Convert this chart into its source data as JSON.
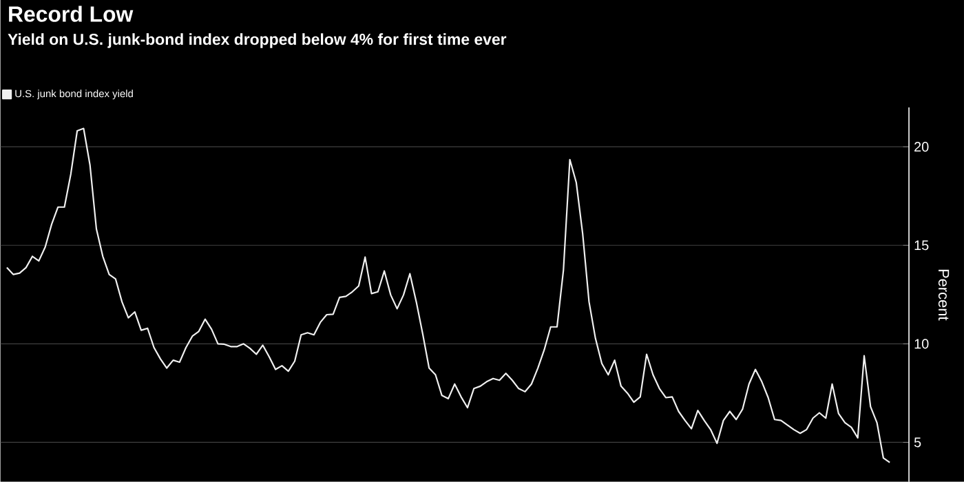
{
  "chart_data": {
    "type": "line",
    "title": "Record Low",
    "subtitle": "Yield on U.S. junk-bond index dropped below 4% for first time ever",
    "ylabel": "Percent",
    "categories": [
      null,
      null,
      null,
      null,
      null,
      null,
      null,
      null,
      null,
      null,
      null,
      null,
      null,
      null,
      null,
      null,
      null,
      null,
      null,
      null,
      null,
      null,
      null,
      null,
      null,
      null,
      null,
      null,
      null,
      null,
      null,
      null,
      null,
      null,
      null,
      null,
      null,
      null,
      null,
      null,
      null,
      null,
      null,
      null,
      null,
      null,
      null,
      null,
      null,
      null,
      null,
      null,
      null,
      null,
      null,
      null,
      null,
      null,
      null,
      null,
      null,
      null,
      null,
      null,
      null,
      null,
      null,
      null,
      null,
      null,
      null,
      null,
      null,
      null,
      null,
      null,
      null,
      null,
      null,
      null,
      null,
      null,
      null,
      null,
      null,
      null,
      null,
      null,
      null,
      null,
      null,
      null,
      null,
      null,
      null,
      null,
      null,
      null,
      null,
      null,
      null,
      null,
      null,
      null,
      null,
      null,
      null,
      null,
      null,
      null,
      null,
      null,
      null,
      null,
      null,
      null,
      null,
      null,
      null,
      null,
      null,
      null,
      null,
      null,
      null,
      null,
      null,
      null,
      null,
      null,
      null,
      null,
      null,
      null,
      null,
      null,
      null,
      null,
      null
    ],
    "series": [
      {
        "name": "U.S. junk bond index yield",
        "color": "#f0f0f0",
        "values": [
          13.87,
          13.52,
          13.59,
          13.87,
          14.44,
          14.21,
          14.91,
          16.06,
          16.94,
          16.94,
          18.61,
          20.81,
          20.93,
          19.07,
          15.83,
          14.44,
          13.52,
          13.29,
          12.13,
          11.32,
          11.62,
          10.69,
          10.79,
          9.81,
          9.24,
          8.77,
          9.17,
          9.07,
          9.81,
          10.39,
          10.63,
          11.25,
          10.74,
          10.0,
          9.98,
          9.86,
          9.86,
          10.0,
          9.77,
          9.47,
          9.93,
          9.35,
          8.7,
          8.89,
          8.61,
          9.12,
          10.46,
          10.56,
          10.46,
          11.09,
          11.48,
          11.5,
          12.36,
          12.41,
          12.64,
          12.94,
          14.4,
          12.55,
          12.64,
          13.7,
          12.48,
          11.78,
          12.48,
          13.56,
          12.13,
          10.51,
          8.77,
          8.43,
          7.38,
          7.22,
          7.96,
          7.31,
          6.76,
          7.73,
          7.85,
          8.08,
          8.24,
          8.15,
          8.5,
          8.15,
          7.73,
          7.57,
          7.96,
          8.77,
          9.7,
          10.86,
          10.86,
          13.75,
          19.35,
          18.19,
          15.6,
          12.13,
          10.28,
          9.0,
          8.43,
          9.17,
          7.85,
          7.5,
          7.04,
          7.31,
          9.47,
          8.43,
          7.73,
          7.27,
          7.31,
          6.57,
          6.11,
          5.69,
          6.62,
          6.11,
          5.65,
          4.95,
          6.11,
          6.57,
          6.16,
          6.69,
          7.96,
          8.7,
          8.08,
          7.27,
          6.16,
          6.11,
          5.88,
          5.65,
          5.46,
          5.65,
          6.23,
          6.5,
          6.23,
          7.96,
          6.46,
          6.0,
          5.76,
          5.23,
          9.4,
          6.81,
          6.0,
          4.21,
          3.98
        ]
      }
    ],
    "ylim": [
      3,
      22
    ],
    "yticks": [
      5,
      10,
      15,
      20
    ],
    "grid": "y",
    "legend": "top left",
    "tick_labels": "y"
  }
}
